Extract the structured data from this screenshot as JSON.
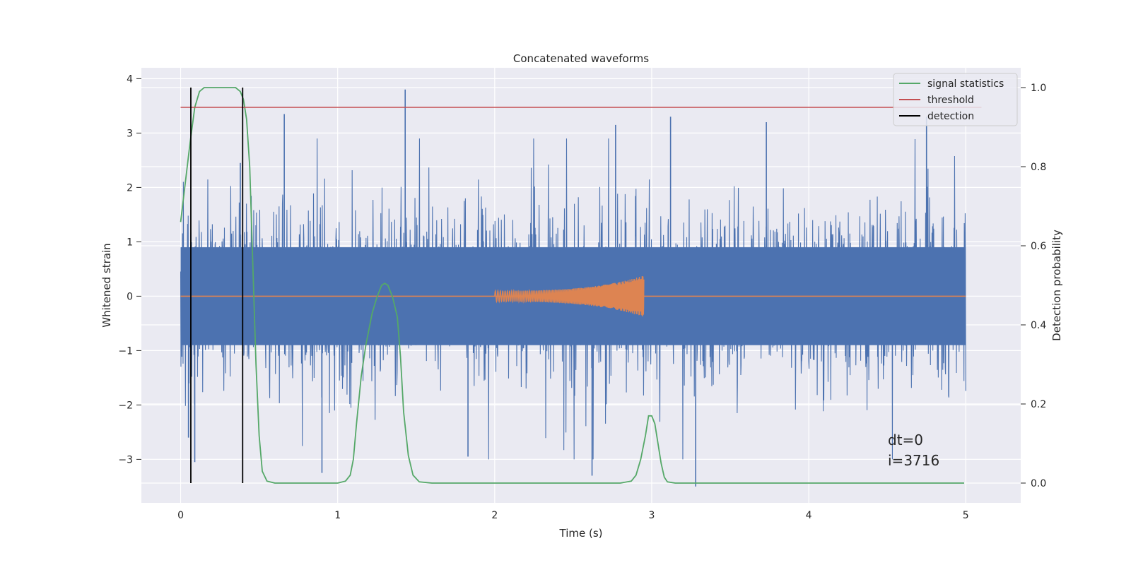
{
  "chart_data": {
    "type": "line",
    "title": "Concatenated waveforms",
    "xlabel": "Time (s)",
    "ylabel": "Whitened strain",
    "y2label": "Detection probability",
    "xlim": [
      -0.25,
      5.35
    ],
    "ylim": [
      -3.8,
      4.2
    ],
    "y2lim": [
      -0.05,
      1.05
    ],
    "xticks": [
      0,
      1,
      2,
      3,
      4,
      5
    ],
    "xtick_labels": [
      "0",
      "1",
      "2",
      "3",
      "4",
      "5"
    ],
    "yticks": [
      -3,
      -2,
      -1,
      0,
      1,
      2,
      3,
      4
    ],
    "ytick_labels": [
      "−3",
      "−2",
      "−1",
      "0",
      "1",
      "2",
      "3",
      "4"
    ],
    "y2ticks": [
      0.0,
      0.2,
      0.4,
      0.6,
      0.8,
      1.0
    ],
    "y2tick_labels": [
      "0.0",
      "0.2",
      "0.4",
      "0.6",
      "0.8",
      "1.0"
    ],
    "grid": true,
    "legend_position": "top-right",
    "legend": [
      {
        "label": "signal statistics",
        "color": "#55a868"
      },
      {
        "label": "threshold",
        "color": "#c44e52"
      },
      {
        "label": "detection",
        "color": "#000000"
      }
    ],
    "colors": {
      "strain": "#4c72b0",
      "injected_waveform": "#dd8452",
      "signal_statistics": "#55a868",
      "threshold": "#c44e52",
      "detection": "#000000",
      "plot_background": "#eaeaf2",
      "grid": "#ffffff"
    },
    "series": [
      {
        "axis": "left",
        "role": "strain",
        "x_range": [
          0,
          5
        ],
        "amplitude_core": 0.9,
        "peaks": [
          {
            "x": 0.05,
            "y": -2.6
          },
          {
            "x": 0.09,
            "y": -3.05
          },
          {
            "x": 0.38,
            "y": 2.45
          },
          {
            "x": 0.66,
            "y": 3.35
          },
          {
            "x": 0.9,
            "y": -3.25
          },
          {
            "x": 1.43,
            "y": 3.8
          },
          {
            "x": 1.83,
            "y": -2.95
          },
          {
            "x": 2.62,
            "y": -3.3
          },
          {
            "x": 2.77,
            "y": 3.15
          },
          {
            "x": 3.12,
            "y": 3.3
          },
          {
            "x": 3.28,
            "y": -3.5
          },
          {
            "x": 3.73,
            "y": 3.2
          },
          {
            "x": 4.75,
            "y": 3.3
          }
        ]
      },
      {
        "axis": "left",
        "role": "injected_waveform",
        "x_range": [
          0,
          5
        ],
        "chirp_start": 2.0,
        "chirp_end": 2.95,
        "amplitude_start": 0.1,
        "amplitude_end": 0.38
      },
      {
        "name": "signal statistics",
        "axis": "right",
        "x": [
          0.0,
          0.03,
          0.06,
          0.09,
          0.12,
          0.15,
          0.2,
          0.3,
          0.35,
          0.38,
          0.4,
          0.42,
          0.44,
          0.46,
          0.48,
          0.5,
          0.52,
          0.55,
          0.6,
          0.8,
          1.0,
          1.05,
          1.08,
          1.1,
          1.12,
          1.15,
          1.18,
          1.2,
          1.22,
          1.25,
          1.28,
          1.3,
          1.32,
          1.35,
          1.38,
          1.4,
          1.42,
          1.45,
          1.48,
          1.52,
          1.6,
          2.0,
          2.5,
          2.8,
          2.87,
          2.9,
          2.93,
          2.96,
          2.98,
          3.0,
          3.02,
          3.04,
          3.06,
          3.08,
          3.1,
          3.15,
          3.5,
          4.0,
          4.5,
          4.99
        ],
        "y": [
          0.66,
          0.76,
          0.86,
          0.95,
          0.99,
          1.0,
          1.0,
          1.0,
          1.0,
          0.99,
          0.97,
          0.92,
          0.8,
          0.55,
          0.3,
          0.12,
          0.03,
          0.005,
          0.0,
          0.0,
          0.0,
          0.005,
          0.02,
          0.06,
          0.15,
          0.27,
          0.35,
          0.39,
          0.43,
          0.47,
          0.5,
          0.505,
          0.5,
          0.47,
          0.42,
          0.32,
          0.18,
          0.07,
          0.02,
          0.003,
          0.0,
          0.0,
          0.0,
          0.0,
          0.005,
          0.02,
          0.06,
          0.12,
          0.17,
          0.17,
          0.15,
          0.1,
          0.05,
          0.015,
          0.003,
          0.0,
          0.0,
          0.0,
          0.0,
          0.0
        ]
      },
      {
        "name": "threshold",
        "axis": "right",
        "x": [
          0,
          5.1
        ],
        "y": [
          0.95,
          0.95
        ]
      }
    ],
    "detections": [
      0.065,
      0.395
    ],
    "annotations": [
      "dt=0",
      "i=3716"
    ]
  }
}
